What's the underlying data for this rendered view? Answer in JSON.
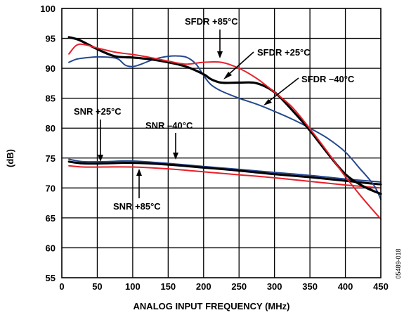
{
  "chart_data": {
    "type": "line",
    "title": "",
    "xlabel": "ANALOG INPUT FREQUENCY (MHz)",
    "ylabel": "(dB)",
    "xlim": [
      0,
      450
    ],
    "ylim": [
      55,
      100
    ],
    "xticks": [
      0,
      50,
      100,
      150,
      200,
      250,
      300,
      350,
      400,
      450
    ],
    "yticks": [
      55,
      60,
      65,
      70,
      75,
      80,
      85,
      90,
      95,
      100
    ],
    "grid": true,
    "figure_id": "05489-018",
    "colors": {
      "black": "#000000",
      "red": "#e8202a",
      "blue": "#25478f"
    },
    "series": [
      {
        "name": "SNR -40°C",
        "color": "#25478f",
        "width": 2,
        "x": [
          10,
          30,
          60,
          100,
          150,
          200,
          250,
          300,
          350,
          400,
          440,
          450
        ],
        "y": [
          74.8,
          74.4,
          74.4,
          74.5,
          74.1,
          73.6,
          73.1,
          72.6,
          72.1,
          71.5,
          71.1,
          71.0
        ]
      },
      {
        "name": "SNR +25°C",
        "color": "#000000",
        "width": 3,
        "x": [
          10,
          30,
          60,
          100,
          150,
          200,
          250,
          300,
          350,
          400,
          440,
          450
        ],
        "y": [
          74.4,
          74.1,
          74.1,
          74.2,
          73.9,
          73.4,
          72.9,
          72.3,
          71.8,
          71.2,
          70.7,
          70.6
        ]
      },
      {
        "name": "SNR +85°C",
        "color": "#e8202a",
        "width": 2,
        "x": [
          10,
          30,
          60,
          100,
          150,
          200,
          250,
          300,
          350,
          400,
          440,
          450
        ],
        "y": [
          73.7,
          73.5,
          73.5,
          73.5,
          73.2,
          72.7,
          72.2,
          71.7,
          71.1,
          70.5,
          70.1,
          70.0
        ]
      },
      {
        "name": "SFDR -40°C",
        "color": "#25478f",
        "width": 2,
        "x": [
          10,
          20,
          30,
          50,
          70,
          80,
          90,
          100,
          110,
          130,
          150,
          170,
          180,
          190,
          200,
          210,
          225,
          250,
          275,
          300,
          325,
          350,
          375,
          400,
          420,
          440,
          450
        ],
        "y": [
          91.0,
          91.5,
          91.7,
          91.9,
          91.8,
          91.5,
          90.5,
          90.3,
          90.6,
          91.5,
          92.0,
          92.0,
          91.6,
          90.6,
          88.8,
          87.3,
          86.2,
          85.0,
          84.0,
          82.8,
          81.5,
          80.0,
          78.3,
          76.0,
          73.3,
          70.5,
          68.1
        ]
      },
      {
        "name": "SFDR +25°C",
        "color": "#000000",
        "width": 3.2,
        "x": [
          10,
          25,
          50,
          75,
          100,
          125,
          150,
          175,
          200,
          210,
          225,
          250,
          275,
          300,
          325,
          350,
          375,
          400,
          425,
          450
        ],
        "y": [
          95.2,
          94.7,
          93.2,
          92.0,
          91.8,
          91.5,
          91.0,
          90.3,
          89.0,
          88.2,
          87.6,
          87.6,
          87.5,
          86.0,
          83.0,
          79.6,
          75.8,
          72.3,
          70.3,
          69.0
        ]
      },
      {
        "name": "SFDR +85°C",
        "color": "#e8202a",
        "width": 2,
        "x": [
          10,
          20,
          30,
          50,
          75,
          100,
          125,
          150,
          175,
          200,
          225,
          250,
          275,
          300,
          325,
          350,
          375,
          400,
          425,
          450
        ],
        "y": [
          92.4,
          93.8,
          94.0,
          93.4,
          92.7,
          92.3,
          91.8,
          91.2,
          90.7,
          91.0,
          91.0,
          90.0,
          88.3,
          86.0,
          83.5,
          79.9,
          76.0,
          71.9,
          68.2,
          64.8
        ]
      }
    ],
    "annotations": [
      {
        "text": "SFDR +85°C"
      },
      {
        "text": "SFDR +25°C"
      },
      {
        "text": "SFDR –40°C"
      },
      {
        "text": "SNR +25°C"
      },
      {
        "text": "SNR –40°C"
      },
      {
        "text": "SNR +85°C"
      }
    ]
  }
}
